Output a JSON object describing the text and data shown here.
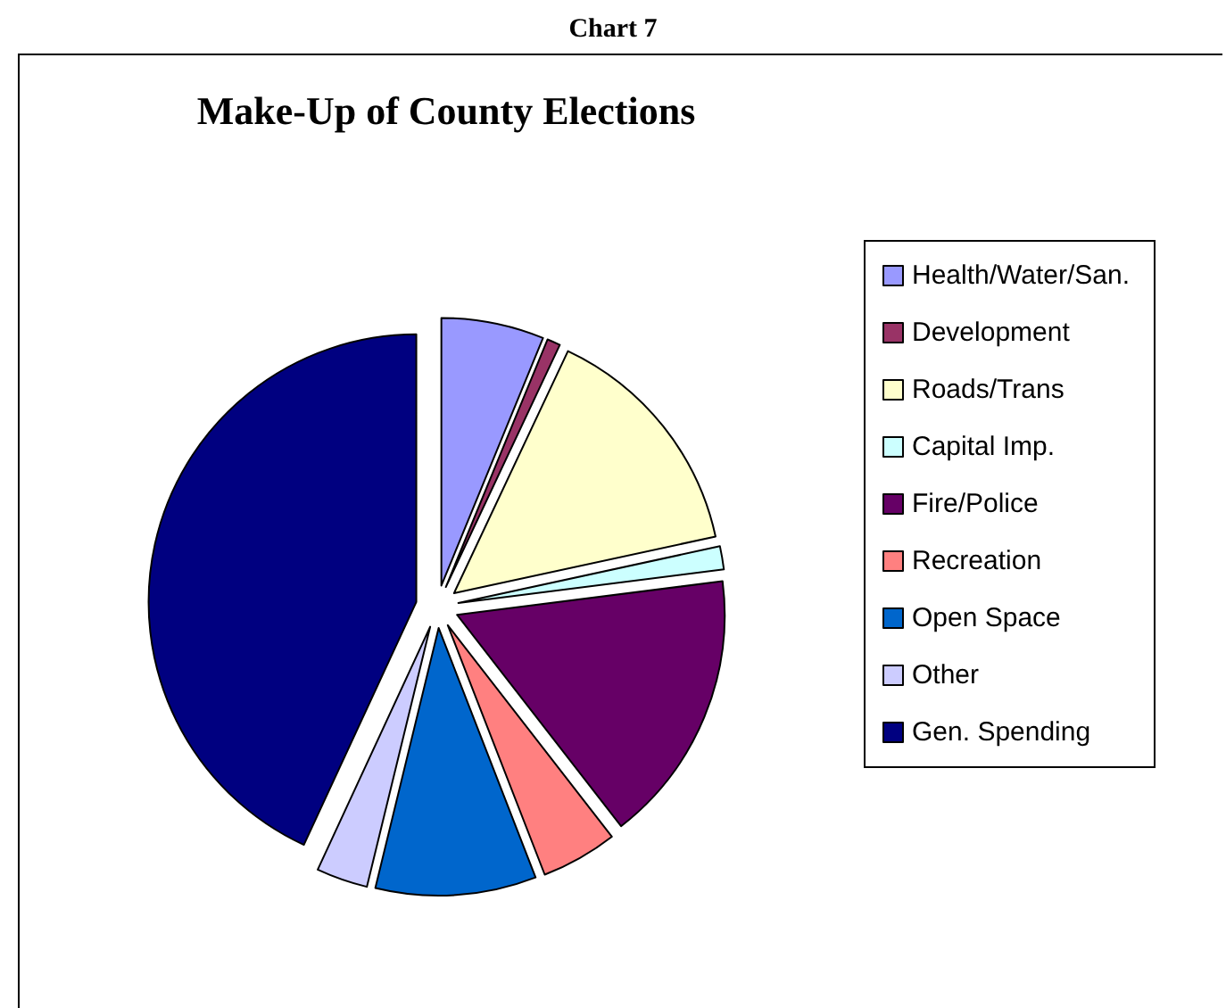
{
  "chart_data": {
    "type": "pie",
    "title": "Make-Up of County Elections",
    "annotations": [
      "Chart 7"
    ],
    "categories": [
      "Health/Water/San.",
      "Development",
      "Roads/Trans",
      "Capital Imp.",
      "Fire/Police",
      "Recreation",
      "Open Space",
      "Other",
      "Gen. Spending"
    ],
    "values": [
      6.2,
      0.8,
      14.6,
      1.4,
      16.5,
      4.6,
      9.7,
      3.1,
      43.1
    ],
    "colors": [
      "#9999ff",
      "#993366",
      "#ffffcc",
      "#ccffff",
      "#660066",
      "#ff8080",
      "#0066cc",
      "#ccccff",
      "#000080"
    ],
    "legend": "right"
  }
}
